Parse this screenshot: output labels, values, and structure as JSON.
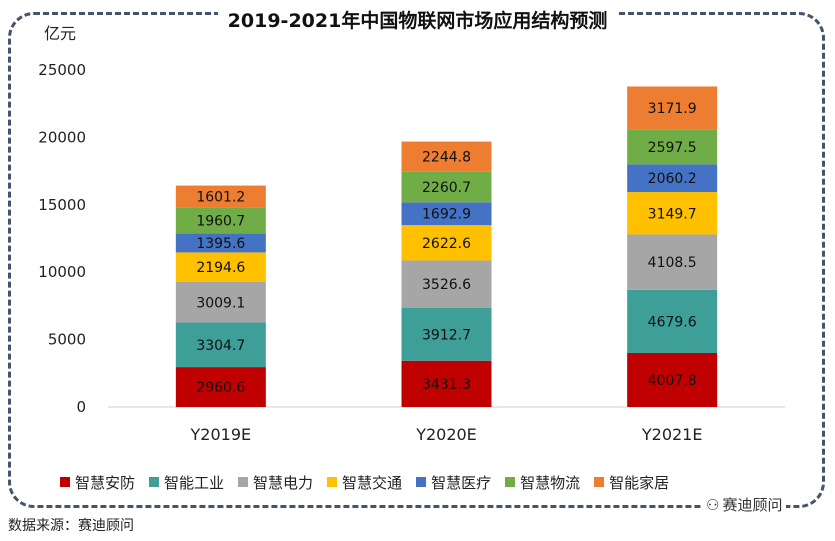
{
  "title": "2019-2021年中国物联网市场应用结构预测",
  "unit_label": "亿元",
  "source_text": "数据来源：赛迪顾问",
  "watermark_text": "赛迪顾问",
  "chart_data": {
    "type": "bar",
    "stacked": true,
    "categories": [
      "Y2019E",
      "Y2020E",
      "Y2021E"
    ],
    "ylim": [
      0,
      25000
    ],
    "yticks": [
      0,
      5000,
      10000,
      15000,
      20000,
      25000
    ],
    "ylabel": "亿元",
    "legend_position": "bottom",
    "grid": false,
    "series": [
      {
        "name": "智慧安防",
        "color": "#c00000",
        "values": [
          2960.6,
          3431.3,
          4007.8
        ]
      },
      {
        "name": "智能工业",
        "color": "#3e9e98",
        "values": [
          3304.7,
          3912.7,
          4679.6
        ]
      },
      {
        "name": "智慧电力",
        "color": "#a6a6a6",
        "values": [
          3009.1,
          3526.6,
          4108.5
        ]
      },
      {
        "name": "智慧交通",
        "color": "#ffc000",
        "values": [
          2194.6,
          2622.6,
          3149.7
        ]
      },
      {
        "name": "智慧医疗",
        "color": "#4472c4",
        "values": [
          1395.6,
          1692.9,
          2060.2
        ]
      },
      {
        "name": "智慧物流",
        "color": "#70ad47",
        "values": [
          1960.7,
          2260.7,
          2597.5
        ]
      },
      {
        "name": "智能家居",
        "color": "#ed7d31",
        "values": [
          1601.2,
          2244.8,
          3171.9
        ]
      }
    ]
  }
}
